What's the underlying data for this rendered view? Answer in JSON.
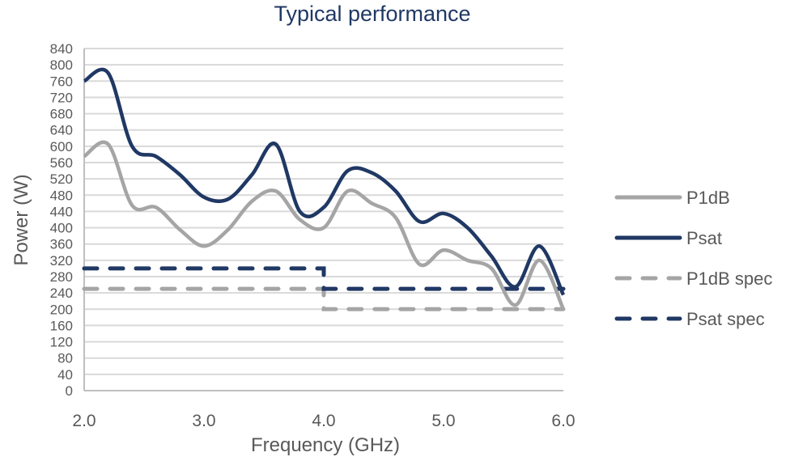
{
  "chart_data": {
    "type": "line",
    "title": "Typical performance",
    "xlabel": "Frequency (GHz)",
    "ylabel": "Power (W)",
    "xlim": [
      2.0,
      6.0
    ],
    "ylim": [
      0,
      840
    ],
    "x_ticks": [
      "2.0",
      "3.0",
      "4.0",
      "5.0",
      "6.0"
    ],
    "y_ticks": [
      "0",
      "40",
      "80",
      "120",
      "160",
      "200",
      "240",
      "280",
      "320",
      "360",
      "400",
      "440",
      "480",
      "520",
      "560",
      "600",
      "640",
      "680",
      "720",
      "760",
      "800",
      "840"
    ],
    "grid": "horizontal",
    "legend_position": "right",
    "x": [
      2.0,
      2.2,
      2.4,
      2.6,
      2.8,
      3.0,
      3.2,
      3.4,
      3.6,
      3.8,
      4.0,
      4.2,
      4.4,
      4.6,
      4.8,
      5.0,
      5.2,
      5.4,
      5.6,
      5.8,
      6.0
    ],
    "series": [
      {
        "name": "P1dB",
        "style": "solid",
        "color": "#a5a5a5",
        "values": [
          575,
          605,
          455,
          450,
          395,
          355,
          395,
          465,
          490,
          420,
          400,
          490,
          460,
          425,
          310,
          345,
          320,
          300,
          210,
          320,
          200
        ]
      },
      {
        "name": "Psat",
        "style": "solid",
        "color": "#203864",
        "values": [
          760,
          780,
          600,
          575,
          530,
          475,
          470,
          530,
          605,
          440,
          450,
          540,
          535,
          490,
          415,
          435,
          400,
          330,
          255,
          355,
          235
        ]
      },
      {
        "name": "P1dB spec",
        "style": "dashed",
        "color": "#a5a5a5",
        "steps": [
          {
            "x": [
              2.0,
              4.0
            ],
            "y": 250
          },
          {
            "x": [
              4.0,
              6.0
            ],
            "y": 200
          }
        ]
      },
      {
        "name": "Psat spec",
        "style": "dashed",
        "color": "#203864",
        "steps": [
          {
            "x": [
              2.0,
              4.0
            ],
            "y": 300
          },
          {
            "x": [
              4.0,
              6.0
            ],
            "y": 250
          }
        ]
      }
    ]
  }
}
